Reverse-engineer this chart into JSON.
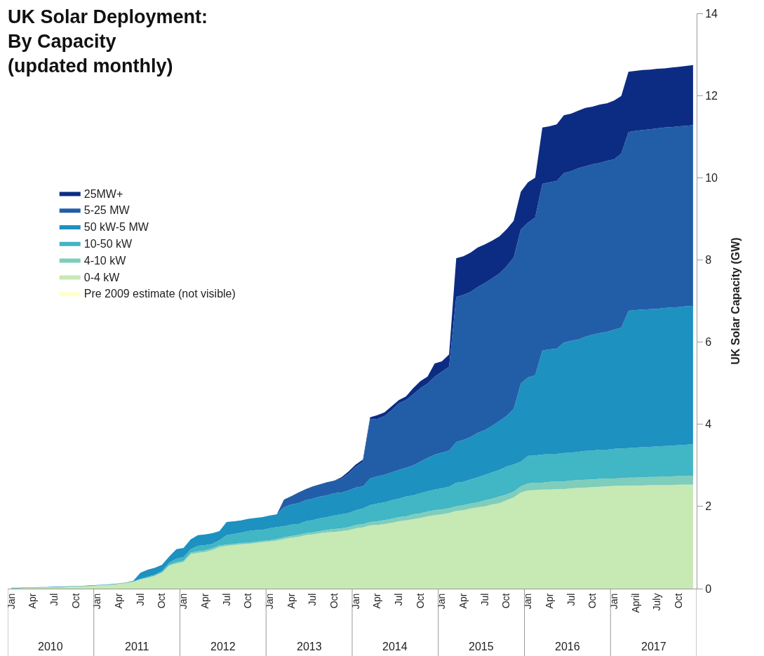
{
  "chart_data": {
    "type": "area",
    "stacked": true,
    "title": "UK Solar Deployment:\nBy Capacity\n(updated monthly)",
    "ylabel": "UK Solar Capacity (GW)",
    "categories": [
      "Jan",
      null,
      null,
      "Apr",
      null,
      null,
      "Jul",
      null,
      null,
      "Oct",
      null,
      null,
      "Jan",
      null,
      null,
      "Apr",
      null,
      null,
      "Jul",
      null,
      null,
      "Oct",
      null,
      null,
      "Jan",
      null,
      null,
      "Apr",
      null,
      null,
      "Jul",
      null,
      null,
      "Oct",
      null,
      null,
      "Jan",
      null,
      null,
      "Apr",
      null,
      null,
      "Jul",
      null,
      null,
      "Oct",
      null,
      null,
      "Jan",
      null,
      null,
      "Apr",
      null,
      null,
      "Jul",
      null,
      null,
      "Oct",
      null,
      null,
      "Jan",
      null,
      null,
      "Apr",
      null,
      null,
      "Jul",
      null,
      null,
      "Oct",
      null,
      null,
      "Jan",
      null,
      null,
      "Apr",
      null,
      null,
      "Jul",
      null,
      null,
      "Oct",
      null,
      null,
      "Jan",
      null,
      null,
      "April",
      null,
      null,
      "July",
      null,
      null,
      "Oct",
      null,
      null
    ],
    "annotations": [
      "2010",
      "2011",
      "2012",
      "2013",
      "2014",
      "2015",
      "2016",
      "2017"
    ],
    "ylim": [
      0,
      14
    ],
    "yticks": [
      0,
      2,
      4,
      6,
      8,
      10,
      12,
      14
    ],
    "legend": "left",
    "series": [
      {
        "name": "Pre 2009 estimate (not visible)",
        "color": "#ffffcc",
        "values": [
          null,
          null,
          null,
          null,
          null,
          null,
          null,
          null,
          null,
          null,
          null,
          null,
          null,
          null,
          null,
          null,
          null,
          null,
          null,
          null,
          null,
          null,
          null,
          null,
          null,
          null,
          null,
          null,
          null,
          null,
          null,
          null,
          null,
          null,
          null,
          null,
          null,
          null,
          null,
          null,
          null,
          null,
          null,
          null,
          null,
          null,
          null,
          null,
          null,
          null,
          null,
          null,
          null,
          null,
          null,
          null,
          null,
          null,
          null,
          null,
          null,
          null,
          null,
          null,
          null,
          null,
          null,
          null,
          null,
          null,
          null,
          null,
          null,
          null,
          null,
          null,
          null,
          null,
          null,
          null,
          null,
          null,
          null,
          null,
          null,
          null,
          null,
          null,
          null,
          null,
          null,
          null,
          null,
          null,
          null,
          null
        ]
      },
      {
        "name": "0-4 kW",
        "color": "#c7e9b4",
        "values": [
          0.01,
          0.01,
          0.02,
          0.02,
          0.03,
          0.03,
          0.04,
          0.04,
          0.05,
          0.05,
          0.06,
          0.07,
          0.08,
          0.09,
          0.1,
          0.12,
          0.14,
          0.17,
          0.22,
          0.26,
          0.31,
          0.39,
          0.56,
          0.61,
          0.65,
          0.84,
          0.87,
          0.89,
          0.94,
          1.01,
          1.04,
          1.06,
          1.08,
          1.09,
          1.11,
          1.13,
          1.15,
          1.17,
          1.21,
          1.24,
          1.26,
          1.3,
          1.32,
          1.35,
          1.37,
          1.38,
          1.4,
          1.42,
          1.47,
          1.49,
          1.54,
          1.55,
          1.57,
          1.6,
          1.64,
          1.66,
          1.69,
          1.72,
          1.76,
          1.79,
          1.81,
          1.84,
          1.89,
          1.91,
          1.95,
          1.98,
          2.0,
          2.05,
          2.08,
          2.15,
          2.22,
          2.34,
          2.39,
          2.4,
          2.41,
          2.41,
          2.42,
          2.42,
          2.44,
          2.45,
          2.46,
          2.47,
          2.48,
          2.49,
          2.5,
          2.5,
          2.51,
          2.51,
          2.51,
          2.52,
          2.52,
          2.52,
          2.52,
          2.53,
          2.53,
          2.53
        ]
      },
      {
        "name": "4-10 kW",
        "color": "#7fcdbb",
        "values": [
          0,
          0,
          0,
          0,
          0,
          0,
          0,
          0,
          0,
          0,
          0,
          0,
          0,
          0,
          0,
          0,
          0,
          0,
          0.01,
          0.01,
          0.01,
          0.01,
          0.02,
          0.03,
          0.03,
          0.04,
          0.04,
          0.04,
          0.04,
          0.04,
          0.03,
          0.03,
          0.03,
          0.03,
          0.03,
          0.03,
          0.03,
          0.04,
          0.04,
          0.04,
          0.05,
          0.05,
          0.05,
          0.05,
          0.06,
          0.07,
          0.07,
          0.08,
          0.08,
          0.08,
          0.08,
          0.09,
          0.1,
          0.1,
          0.1,
          0.1,
          0.12,
          0.11,
          0.12,
          0.12,
          0.12,
          0.12,
          0.11,
          0.12,
          0.12,
          0.12,
          0.15,
          0.14,
          0.16,
          0.14,
          0.14,
          0.15,
          0.17,
          0.18,
          0.17,
          0.19,
          0.19,
          0.19,
          0.19,
          0.19,
          0.19,
          0.19,
          0.19,
          0.19,
          0.18,
          0.19,
          0.19,
          0.19,
          0.2,
          0.2,
          0.2,
          0.21,
          0.21,
          0.21,
          0.21,
          0.22
        ]
      },
      {
        "name": "10-50 kW",
        "color": "#41b6c4",
        "values": [
          0,
          0,
          0,
          0,
          0,
          0,
          0,
          0,
          0,
          0,
          0,
          0,
          0,
          0,
          0,
          0,
          0,
          0.01,
          0.01,
          0.02,
          0.02,
          0.03,
          0.05,
          0.09,
          0.09,
          0.08,
          0.13,
          0.13,
          0.11,
          0.13,
          0.23,
          0.24,
          0.25,
          0.28,
          0.28,
          0.27,
          0.29,
          0.29,
          0.27,
          0.28,
          0.26,
          0.29,
          0.3,
          0.31,
          0.31,
          0.33,
          0.34,
          0.34,
          0.36,
          0.38,
          0.41,
          0.43,
          0.43,
          0.45,
          0.45,
          0.48,
          0.46,
          0.49,
          0.49,
          0.5,
          0.51,
          0.52,
          0.58,
          0.57,
          0.59,
          0.61,
          0.62,
          0.64,
          0.65,
          0.68,
          0.66,
          0.6,
          0.67,
          0.66,
          0.68,
          0.68,
          0.67,
          0.69,
          0.68,
          0.69,
          0.7,
          0.7,
          0.71,
          0.7,
          0.72,
          0.72,
          0.72,
          0.73,
          0.73,
          0.73,
          0.74,
          0.74,
          0.75,
          0.75,
          0.76,
          0.77
        ]
      },
      {
        "name": "50 kW-5 MW",
        "color": "#1d91c0",
        "values": [
          0.01,
          0.01,
          0.01,
          0.01,
          0.01,
          0.01,
          0.01,
          0.01,
          0.01,
          0.01,
          0.01,
          0.01,
          0.01,
          0.01,
          0.01,
          0.01,
          0.01,
          0.01,
          0.15,
          0.17,
          0.17,
          0.15,
          0.15,
          0.23,
          0.22,
          0.24,
          0.26,
          0.26,
          0.26,
          0.22,
          0.32,
          0.31,
          0.3,
          0.3,
          0.3,
          0.31,
          0.31,
          0.31,
          0.46,
          0.49,
          0.51,
          0.51,
          0.52,
          0.53,
          0.53,
          0.54,
          0.53,
          0.55,
          0.55,
          0.54,
          0.65,
          0.66,
          0.67,
          0.68,
          0.7,
          0.7,
          0.73,
          0.77,
          0.81,
          0.85,
          0.87,
          0.88,
          0.99,
          1.02,
          1.03,
          1.08,
          1.09,
          1.13,
          1.19,
          1.23,
          1.35,
          1.9,
          1.91,
          1.95,
          2.53,
          2.54,
          2.56,
          2.69,
          2.72,
          2.73,
          2.78,
          2.82,
          2.84,
          2.87,
          2.9,
          2.94,
          3.34,
          3.35,
          3.35,
          3.35,
          3.35,
          3.36,
          3.36,
          3.36,
          3.37,
          3.36
        ]
      },
      {
        "name": "5-25 MW",
        "color": "#225ea8",
        "values": [
          0,
          0,
          0,
          0,
          0,
          0,
          0,
          0,
          0,
          0,
          0,
          0,
          0,
          0,
          0,
          0,
          0,
          0,
          0,
          0,
          0,
          0,
          0,
          0,
          0,
          0,
          0,
          0,
          0,
          0,
          0,
          0,
          0,
          0,
          0,
          0,
          0,
          0,
          0.19,
          0.2,
          0.26,
          0.27,
          0.3,
          0.3,
          0.32,
          0.31,
          0.34,
          0.41,
          0.51,
          0.6,
          1.44,
          1.4,
          1.43,
          1.51,
          1.62,
          1.65,
          1.73,
          1.79,
          1.81,
          1.9,
          1.97,
          2.04,
          3.53,
          3.53,
          3.53,
          3.55,
          3.58,
          3.59,
          3.59,
          3.64,
          3.69,
          3.75,
          3.77,
          3.84,
          4.06,
          4.07,
          4.08,
          4.12,
          4.13,
          4.17,
          4.15,
          4.15,
          4.14,
          4.16,
          4.15,
          4.24,
          4.35,
          4.36,
          4.37,
          4.38,
          4.39,
          4.39,
          4.39,
          4.4,
          4.39,
          4.4
        ]
      },
      {
        "name": "25MW+",
        "color": "#0c2c84",
        "values": [
          0,
          0,
          0,
          0,
          0,
          0,
          0,
          0,
          0,
          0,
          0,
          0,
          0,
          0,
          0,
          0,
          0,
          0,
          0,
          0,
          0,
          0,
          0,
          0,
          0,
          0,
          0,
          0,
          0,
          0,
          0,
          0,
          0,
          0,
          0,
          0,
          0,
          0,
          0,
          0,
          0,
          0,
          0,
          0,
          0,
          0,
          0.03,
          0.05,
          0.05,
          0.05,
          0.05,
          0.09,
          0.09,
          0.1,
          0.08,
          0.09,
          0.15,
          0.17,
          0.17,
          0.32,
          0.25,
          0.3,
          0.94,
          0.94,
          0.96,
          0.96,
          0.94,
          0.92,
          0.9,
          0.9,
          0.89,
          0.92,
          0.98,
          0.97,
          1.37,
          1.36,
          1.38,
          1.41,
          1.4,
          1.4,
          1.42,
          1.4,
          1.42,
          1.4,
          1.43,
          1.4,
          1.47,
          1.46,
          1.46,
          1.45,
          1.45,
          1.44,
          1.45,
          1.45,
          1.46,
          1.46
        ]
      }
    ]
  }
}
